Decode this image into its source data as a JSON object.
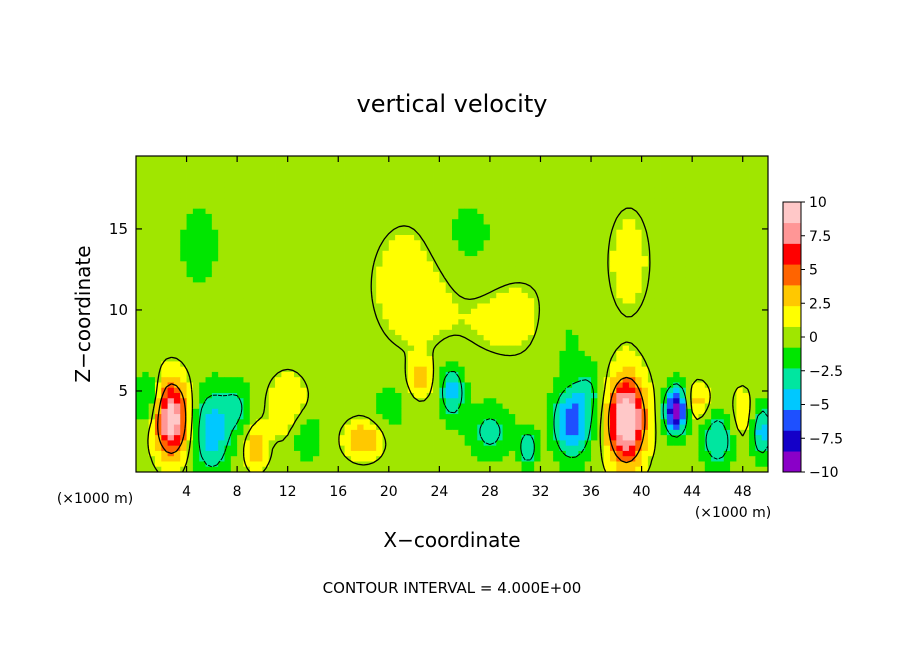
{
  "chart_data": {
    "type": "heatmap",
    "title": "vertical velocity",
    "xlabel": "X−coordinate",
    "ylabel": "Z−coordinate",
    "x_unit_left": "(×1000 m)",
    "x_unit_right": "(×1000 m)",
    "footer": "CONTOUR INTERVAL = 4.000E+00",
    "xlim": [
      0,
      50
    ],
    "ylim": [
      0,
      19.5
    ],
    "xticks": [
      4,
      8,
      12,
      16,
      20,
      24,
      28,
      32,
      36,
      40,
      44,
      48
    ],
    "yticks": [
      5,
      10,
      15
    ],
    "colorbar": {
      "range": [
        -10,
        10
      ],
      "ticks": [
        "10",
        "7.5",
        "5",
        "2.5",
        "0",
        "−2.5",
        "−5",
        "−7.5",
        "−10"
      ],
      "colors": [
        "#8a00c8",
        "#1400c8",
        "#1e50ff",
        "#00c8ff",
        "#00e6a0",
        "#00e600",
        "#a0e600",
        "#ffff00",
        "#ffc800",
        "#ff6400",
        "#ff0000",
        "#ff9696",
        "#ffc8c8"
      ]
    },
    "background_value": 0,
    "features": [
      {
        "x": 2.8,
        "z": 3.3,
        "w": 10.0,
        "sx": 0.9,
        "sz": 1.6
      },
      {
        "x": 1.0,
        "z": 4.5,
        "w": -3.0,
        "sx": 0.7,
        "sz": 1.2
      },
      {
        "x": 6.0,
        "z": 2.5,
        "w": -5.0,
        "sx": 1.0,
        "sz": 1.8
      },
      {
        "x": 8.0,
        "z": 4.0,
        "w": -2.5,
        "sx": 0.8,
        "sz": 1.2
      },
      {
        "x": 9.5,
        "z": 1.5,
        "w": 3.5,
        "sx": 0.6,
        "sz": 0.9
      },
      {
        "x": 12.0,
        "z": 4.0,
        "w": 2.0,
        "sx": 1.2,
        "sz": 1.5
      },
      {
        "x": 13.5,
        "z": 2.2,
        "w": -2.5,
        "sx": 0.8,
        "sz": 1.0
      },
      {
        "x": 18.0,
        "z": 2.0,
        "w": 4.0,
        "sx": 1.0,
        "sz": 0.8
      },
      {
        "x": 20.0,
        "z": 4.0,
        "w": -1.5,
        "sx": 1.0,
        "sz": 1.2
      },
      {
        "x": 22.5,
        "z": 5.8,
        "w": 3.0,
        "sx": 0.6,
        "sz": 0.8
      },
      {
        "x": 25.0,
        "z": 5.0,
        "w": -4.5,
        "sx": 0.7,
        "sz": 1.2
      },
      {
        "x": 28.0,
        "z": 2.5,
        "w": -3.0,
        "sx": 1.2,
        "sz": 1.2
      },
      {
        "x": 31.0,
        "z": 1.5,
        "w": -4.0,
        "sx": 0.5,
        "sz": 0.8
      },
      {
        "x": 34.5,
        "z": 3.0,
        "w": -6.5,
        "sx": 1.0,
        "sz": 1.5
      },
      {
        "x": 36.0,
        "z": 5.0,
        "w": -2.0,
        "sx": 0.8,
        "sz": 1.2
      },
      {
        "x": 38.8,
        "z": 3.2,
        "w": 11.5,
        "sx": 1.0,
        "sz": 1.8
      },
      {
        "x": 42.7,
        "z": 3.8,
        "w": -9.5,
        "sx": 0.6,
        "sz": 1.0
      },
      {
        "x": 44.5,
        "z": 4.3,
        "w": 3.0,
        "sx": 0.6,
        "sz": 0.8
      },
      {
        "x": 46.0,
        "z": 2.0,
        "w": -4.0,
        "sx": 0.9,
        "sz": 1.2
      },
      {
        "x": 48.0,
        "z": 3.5,
        "w": 2.0,
        "sx": 0.7,
        "sz": 1.2
      },
      {
        "x": 49.5,
        "z": 2.5,
        "w": -4.5,
        "sx": 0.6,
        "sz": 1.2
      },
      {
        "x": 22.0,
        "z": 11.5,
        "w": 1.5,
        "sx": 2.5,
        "sz": 3.0
      },
      {
        "x": 26.0,
        "z": 14.5,
        "w": -1.3,
        "sx": 2.0,
        "sz": 2.0
      },
      {
        "x": 30.0,
        "z": 9.5,
        "w": 1.2,
        "sx": 3.0,
        "sz": 2.0
      },
      {
        "x": 34.0,
        "z": 8.5,
        "w": -1.2,
        "sx": 1.5,
        "sz": 2.0
      },
      {
        "x": 39.0,
        "z": 13.0,
        "w": 1.1,
        "sx": 1.5,
        "sz": 3.0
      },
      {
        "x": 5.0,
        "z": 14.0,
        "w": -1.2,
        "sx": 1.5,
        "sz": 2.5
      }
    ]
  }
}
